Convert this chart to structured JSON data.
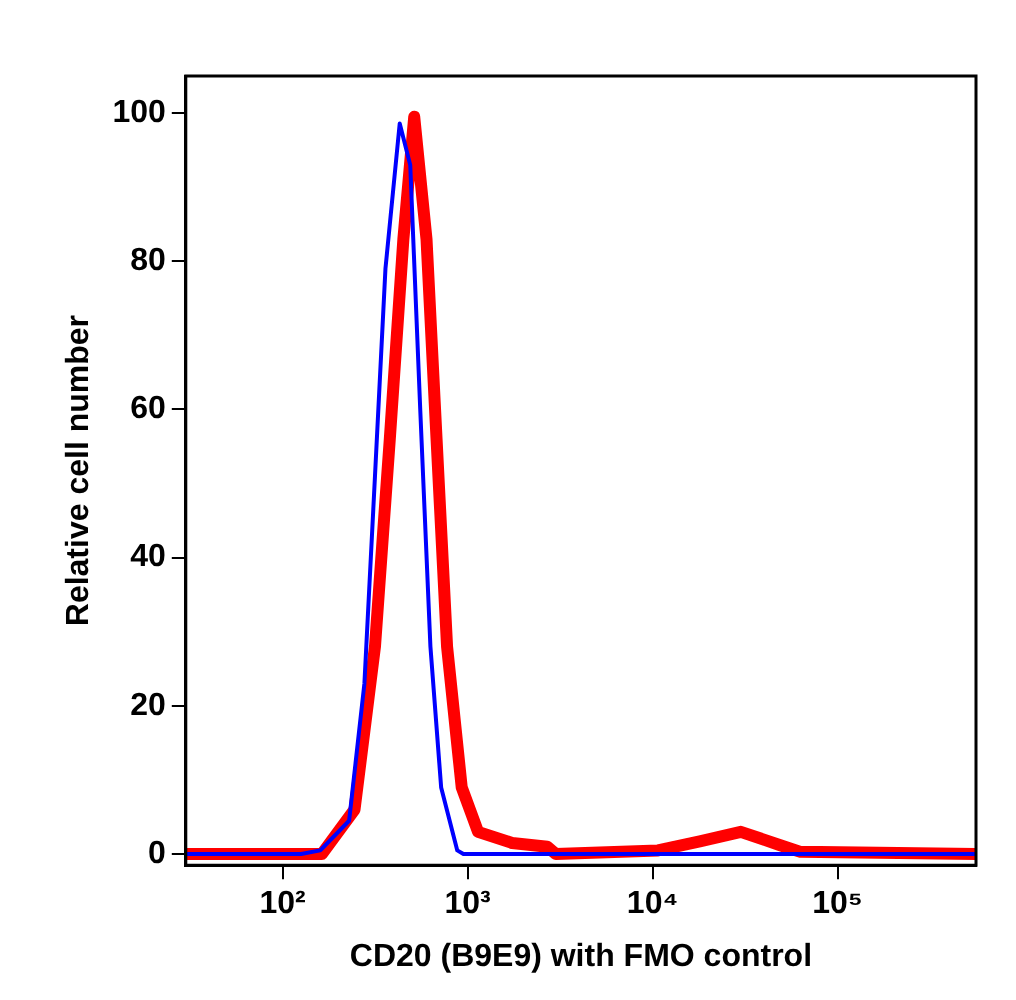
{
  "chart_data": {
    "type": "line",
    "xlabel": "CD20 (B9E9) with FMO control",
    "ylabel": "Relative cell number",
    "log": "x",
    "xlim": [
      30,
      560000
    ],
    "xticks": [
      {
        "value": 100,
        "label": "10²"
      },
      {
        "value": 1000,
        "label": "10³"
      },
      {
        "value": 10000,
        "label": "10⁴"
      },
      {
        "value": 100000,
        "label": "10⁵"
      }
    ],
    "ylim": [
      -1.5,
      105
    ],
    "yticks": [
      0,
      20,
      40,
      60,
      80,
      100
    ],
    "grid": false,
    "legend": false,
    "marker": "none",
    "series": [
      {
        "color": "#0000ff",
        "x": [
          30,
          126,
          160,
          229,
          277,
          316,
          360,
          430,
          490,
          555,
          630,
          720,
          880,
          950,
          560000
        ],
        "values": [
          0,
          0,
          0.5,
          4.5,
          23,
          51,
          79,
          98.6,
          93,
          60,
          28,
          9,
          0.5,
          0,
          0
        ]
      },
      {
        "color": "#ff0000",
        "x": [
          30,
          163,
          245,
          316,
          380,
          450,
          515,
          600,
          680,
          775,
          930,
          1140,
          1740,
          2700,
          3000,
          10700,
          18000,
          30000,
          49000,
          63000,
          560000
        ],
        "values": [
          0,
          0,
          6,
          28,
          56,
          83,
          99.5,
          83,
          56,
          28,
          9,
          3,
          1.5,
          1,
          0,
          0.5,
          1.7,
          3,
          1.2,
          0.3,
          0
        ]
      }
    ]
  }
}
